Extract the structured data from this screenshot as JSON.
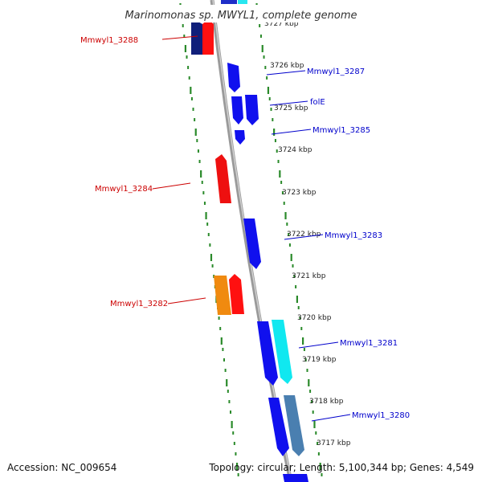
{
  "title": "Marinomonas sp. MWYL1, complete genome",
  "footer": {
    "accession": "Accession: NC_009654",
    "topology": "Topology: circular; Length: 5,100,344 bp; Genes: 4,549"
  },
  "colors": {
    "forward": "#0000ee",
    "reverse": "#ee0000",
    "label_forward": "#0000cc",
    "label_reverse": "#cc0000",
    "backbone": "#888888",
    "ticks": "#2a8a2a"
  },
  "ticks": [
    {
      "label": "3727 kbp"
    },
    {
      "label": "3726 kbp"
    },
    {
      "label": "3725 kbp"
    },
    {
      "label": "3724 kbp"
    },
    {
      "label": "3723 kbp"
    },
    {
      "label": "3722 kbp"
    },
    {
      "label": "3721 kbp"
    },
    {
      "label": "3720 kbp"
    },
    {
      "label": "3719 kbp"
    },
    {
      "label": "3718 kbp"
    },
    {
      "label": "3717 kbp"
    }
  ],
  "gene_labels": [
    {
      "text": "Mmwyl1_3288",
      "strand": "reverse"
    },
    {
      "text": "Mmwyl1_3287",
      "strand": "forward"
    },
    {
      "text": "folE",
      "strand": "forward"
    },
    {
      "text": "Mmwyl1_3285",
      "strand": "forward"
    },
    {
      "text": "Mmwyl1_3284",
      "strand": "reverse"
    },
    {
      "text": "Mmwyl1_3283",
      "strand": "forward"
    },
    {
      "text": "Mmwyl1_3282",
      "strand": "reverse"
    },
    {
      "text": "Mmwyl1_3281",
      "strand": "forward"
    },
    {
      "text": "Mmwyl1_3280",
      "strand": "forward"
    }
  ]
}
